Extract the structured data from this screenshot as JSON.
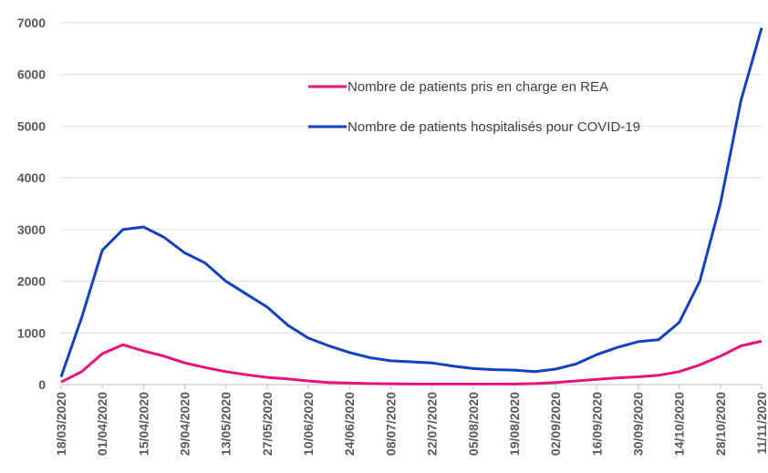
{
  "chart_data": {
    "type": "line",
    "x": [
      "18/03/2020",
      "25/03/2020",
      "01/04/2020",
      "08/04/2020",
      "15/04/2020",
      "22/04/2020",
      "29/04/2020",
      "06/05/2020",
      "13/05/2020",
      "20/05/2020",
      "27/05/2020",
      "03/06/2020",
      "10/06/2020",
      "17/06/2020",
      "24/06/2020",
      "01/07/2020",
      "08/07/2020",
      "15/07/2020",
      "22/07/2020",
      "29/07/2020",
      "05/08/2020",
      "12/08/2020",
      "19/08/2020",
      "26/08/2020",
      "02/09/2020",
      "09/09/2020",
      "16/09/2020",
      "23/09/2020",
      "30/09/2020",
      "07/10/2020",
      "14/10/2020",
      "21/10/2020",
      "28/10/2020",
      "04/11/2020",
      "11/11/2020"
    ],
    "series": [
      {
        "name": "Nombre de patients pris en charge en REA",
        "color": "#e8127c",
        "values": [
          50,
          250,
          600,
          770,
          650,
          550,
          420,
          330,
          250,
          190,
          140,
          110,
          70,
          40,
          30,
          20,
          15,
          10,
          10,
          10,
          10,
          10,
          10,
          20,
          40,
          70,
          100,
          130,
          150,
          180,
          250,
          380,
          550,
          750,
          840
        ]
      },
      {
        "name": "Nombre de patients hospitalisés pour COVID-19",
        "color": "#1441c0",
        "values": [
          150,
          1300,
          2600,
          3000,
          3050,
          2850,
          2550,
          2350,
          2000,
          1750,
          1500,
          1150,
          900,
          750,
          620,
          520,
          460,
          440,
          420,
          360,
          310,
          290,
          280,
          250,
          300,
          400,
          580,
          720,
          830,
          870,
          1200,
          2000,
          3500,
          5500,
          6900
        ]
      }
    ],
    "xlim": [
      "18/03/2020",
      "11/11/2020"
    ],
    "xticks": [
      "18/03/2020",
      "01/04/2020",
      "15/04/2020",
      "29/04/2020",
      "13/05/2020",
      "27/05/2020",
      "10/06/2020",
      "24/06/2020",
      "08/07/2020",
      "22/07/2020",
      "05/08/2020",
      "19/08/2020",
      "02/09/2020",
      "16/09/2020",
      "30/09/2020",
      "14/10/2020",
      "28/10/2020",
      "11/11/2020"
    ],
    "ylim": [
      0,
      7000
    ],
    "yticks": [
      0,
      1000,
      2000,
      3000,
      4000,
      5000,
      6000,
      7000
    ],
    "grid": true
  }
}
